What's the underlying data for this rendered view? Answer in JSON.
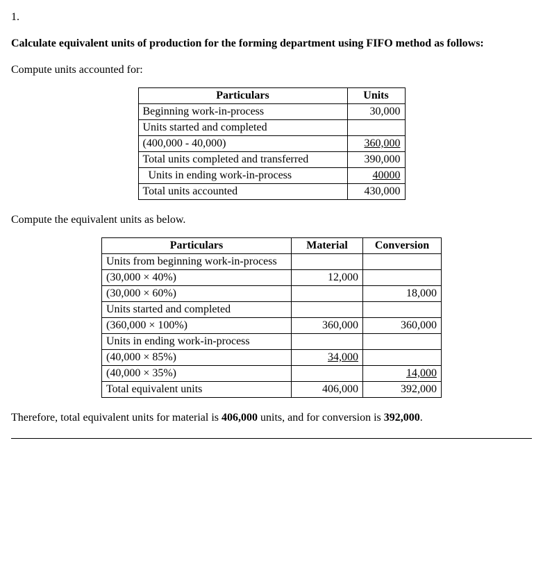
{
  "question_number": "1.",
  "heading": "Calculate equivalent units of production for the forming department using FIFO method as follows:",
  "para1": "Compute units accounted for:",
  "table1": {
    "header": {
      "particulars": "Particulars",
      "units": "Units"
    },
    "rows": [
      {
        "label": "Beginning work-in-process",
        "units": "30,000",
        "underline": false,
        "indent": false
      },
      {
        "label": "Units started and completed",
        "units": "",
        "underline": false,
        "indent": false
      },
      {
        "label": "(400,000 - 40,000)",
        "units": "360,000",
        "underline": true,
        "indent": false
      },
      {
        "label": "Total units completed and transferred",
        "units": "390,000",
        "underline": false,
        "indent": false
      },
      {
        "label": "Units in ending work-in-process",
        "units": "40000",
        "underline": true,
        "indent": true
      },
      {
        "label": "Total units accounted",
        "units": "430,000",
        "underline": false,
        "indent": false
      }
    ]
  },
  "para2": "Compute the equivalent units as below.",
  "table2": {
    "header": {
      "particulars": "Particulars",
      "material": "Material",
      "conversion": "Conversion"
    },
    "rows": [
      {
        "label": "Units from beginning work-in-process",
        "material": "",
        "conversion": "",
        "u_mat": false,
        "u_conv": false
      },
      {
        "label": "(30,000 × 40%)",
        "material": "12,000",
        "conversion": "",
        "u_mat": false,
        "u_conv": false
      },
      {
        "label": "(30,000 × 60%)",
        "material": "",
        "conversion": "18,000",
        "u_mat": false,
        "u_conv": false
      },
      {
        "label": "Units started and completed",
        "material": "",
        "conversion": "",
        "u_mat": false,
        "u_conv": false
      },
      {
        "label": "(360,000 × 100%)",
        "material": "360,000",
        "conversion": "360,000",
        "u_mat": false,
        "u_conv": false
      },
      {
        "label": "Units in ending work-in-process",
        "material": "",
        "conversion": "",
        "u_mat": false,
        "u_conv": false
      },
      {
        "label": "(40,000 × 85%)",
        "material": "34,000",
        "conversion": "",
        "u_mat": true,
        "u_conv": false
      },
      {
        "label": "(40,000 × 35%)",
        "material": "",
        "conversion": "14,000",
        "u_mat": false,
        "u_conv": true
      },
      {
        "label": "Total equivalent units",
        "material": "406,000",
        "conversion": "392,000",
        "u_mat": false,
        "u_conv": false
      }
    ]
  },
  "conclusion": {
    "pre": "Therefore, total equivalent units for material is ",
    "val1": "406,000",
    "mid": " units, and for conversion is ",
    "val2": "392,000",
    "post": "."
  }
}
